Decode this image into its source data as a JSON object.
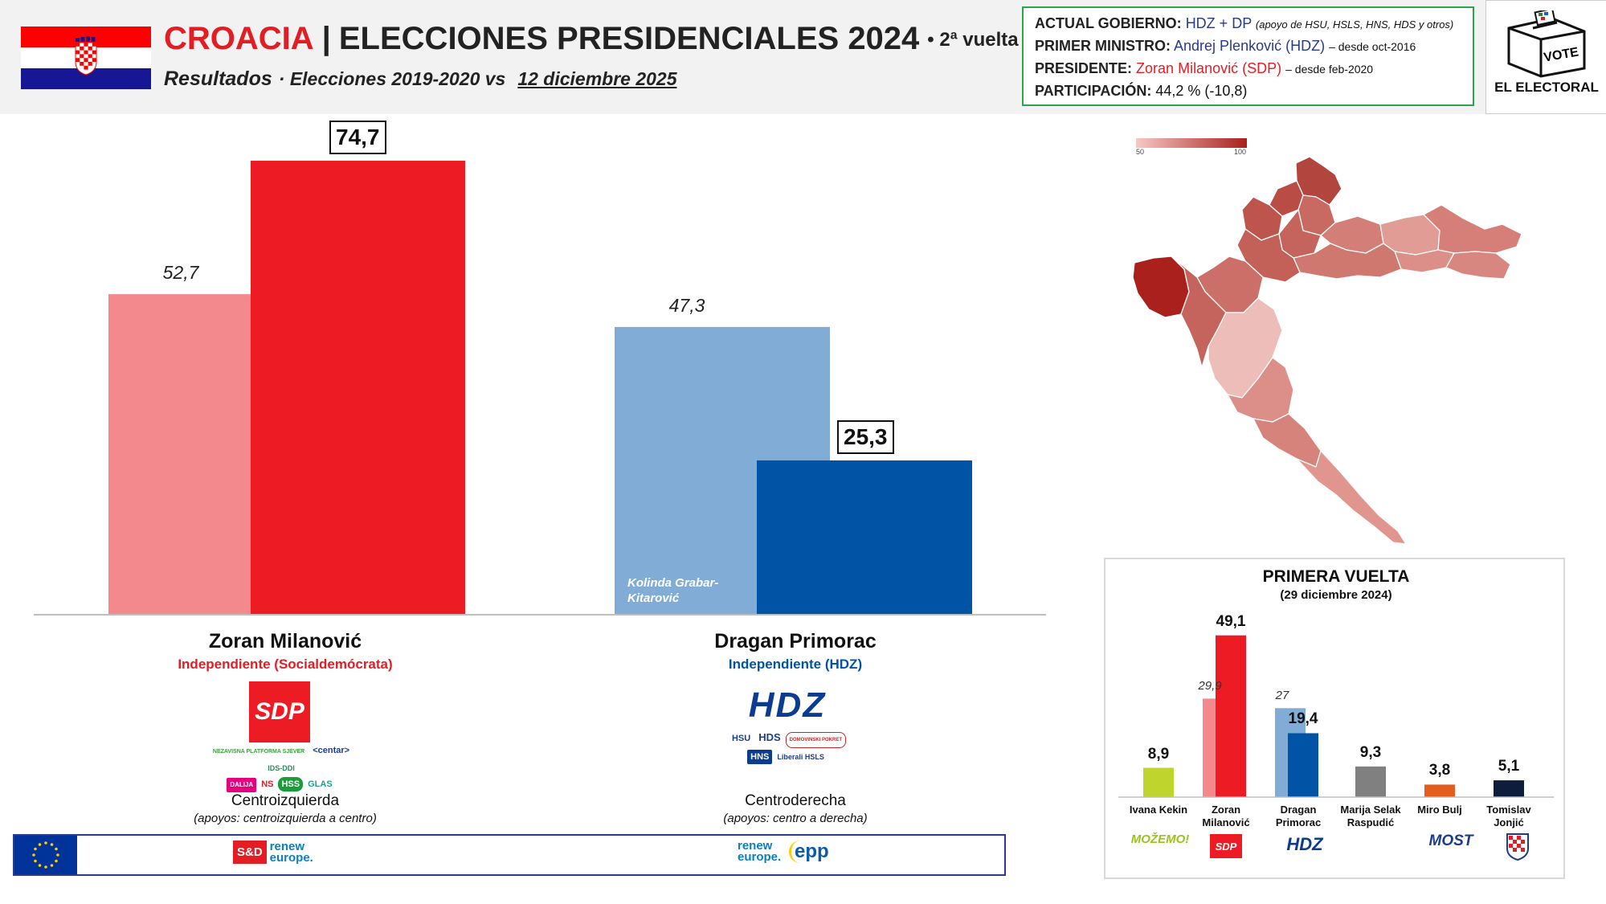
{
  "header": {
    "country": "CROACIA",
    "title": "ELECCIONES PRESIDENCIALES 2024",
    "round": "2ª vuelta",
    "subtitle_bold": "Resultados",
    "subtitle_rest": "· Elecciones 2019-2020 vs",
    "subtitle_date": "12 diciembre 2025"
  },
  "government": {
    "gov_label": "ACTUAL GOBIERNO:",
    "gov_value": "HDZ + DP",
    "gov_note": "(apoyo de HSU, HSLS, HNS, HDS y otros)",
    "pm_label": "PRIMER MINISTRO:",
    "pm_value": "Andrej Plenković (HDZ)",
    "pm_since": "– desde oct-2016",
    "pres_label": "PRESIDENTE:",
    "pres_value": "Zoran Milanović (SDP)",
    "pres_since": "– desde feb-2020",
    "turnout_label": "PARTICIPACIÓN:",
    "turnout_value": "44,2 % (-10,8)"
  },
  "brand": {
    "vote_text": "VOTE",
    "name": "EL ELECTORAL"
  },
  "colors": {
    "milanovic_prev": "#f4898d",
    "milanovic_now": "#ed1c24",
    "primorac_prev": "#80acd6",
    "primorac_now": "#0053a5"
  },
  "chart_data": [
    {
      "type": "bar",
      "title": "",
      "categories": [
        "Zoran Milanović",
        "Dragan Primorac"
      ],
      "series": [
        {
          "name": "Elecciones 2019-2020",
          "values": [
            52.7,
            47.3
          ]
        },
        {
          "name": "12 diciembre 2025",
          "values": [
            74.7,
            25.3
          ]
        }
      ],
      "value_labels_prev": [
        "52,7",
        "47,3"
      ],
      "value_labels_now": [
        "74,7",
        "25,3"
      ],
      "prev_candidate_label": [
        "",
        "Kolinda Grabar-Kitarović"
      ],
      "ylim": [
        0,
        80
      ],
      "grid": false
    },
    {
      "type": "bar",
      "title": "PRIMERA VUELTA",
      "subtitle": "(29 diciembre 2024)",
      "categories": [
        "Ivana Kekin",
        "Zoran Milanović",
        "Dragan Primorac",
        "Marija Selak Raspudić",
        "Miro Bulj",
        "Tomislav Jonjić"
      ],
      "values": [
        8.9,
        49.1,
        19.4,
        9.3,
        3.8,
        5.1
      ],
      "value_labels": [
        "8,9",
        "49,1",
        "19,4",
        "9,3",
        "3,8",
        "5,1"
      ],
      "previous": [
        null,
        29.9,
        27,
        null,
        null,
        null
      ],
      "previous_labels": [
        "",
        "29,9",
        "27",
        "",
        "",
        ""
      ],
      "colors": [
        "#c0d42e",
        "#ed1c24",
        "#0053a5",
        "#808080",
        "#e35d1e",
        "#0f1d3d"
      ],
      "ylim": [
        0,
        55
      ]
    }
  ],
  "candidates": [
    {
      "name": "Zoran Milanović",
      "affiliation": "Independiente (Socialdemócrata)",
      "logo": "SDP",
      "support_logos": [
        "NEZAVISNA PLATFORMA SJEVER",
        "<centar>",
        "IDS-DDI",
        "DALIJA",
        "NS",
        "HSS",
        "GLAS"
      ],
      "bloc": "Centroizquierda",
      "support": "(apoyos: centroizquierda a centro)"
    },
    {
      "name": "Dragan Primorac",
      "affiliation": "Independiente (HDZ)",
      "logo": "HDZ",
      "support_logos": [
        "HSU",
        "HDS",
        "DOMOVINSKI POKRET",
        "HNS",
        "Liberali HSLS"
      ],
      "bloc": "Centroderecha",
      "support": "(apoyos: centro a derecha)"
    }
  ],
  "eu_groups": {
    "left": [
      "S&D",
      "renew europe."
    ],
    "right": [
      "renew europe.",
      "epp"
    ]
  },
  "map": {
    "legend_min": "50",
    "legend_max": "100"
  },
  "first_round_logos": [
    "MOŽEMO!",
    "SDP",
    "HDZ",
    "",
    "MOST",
    ""
  ]
}
